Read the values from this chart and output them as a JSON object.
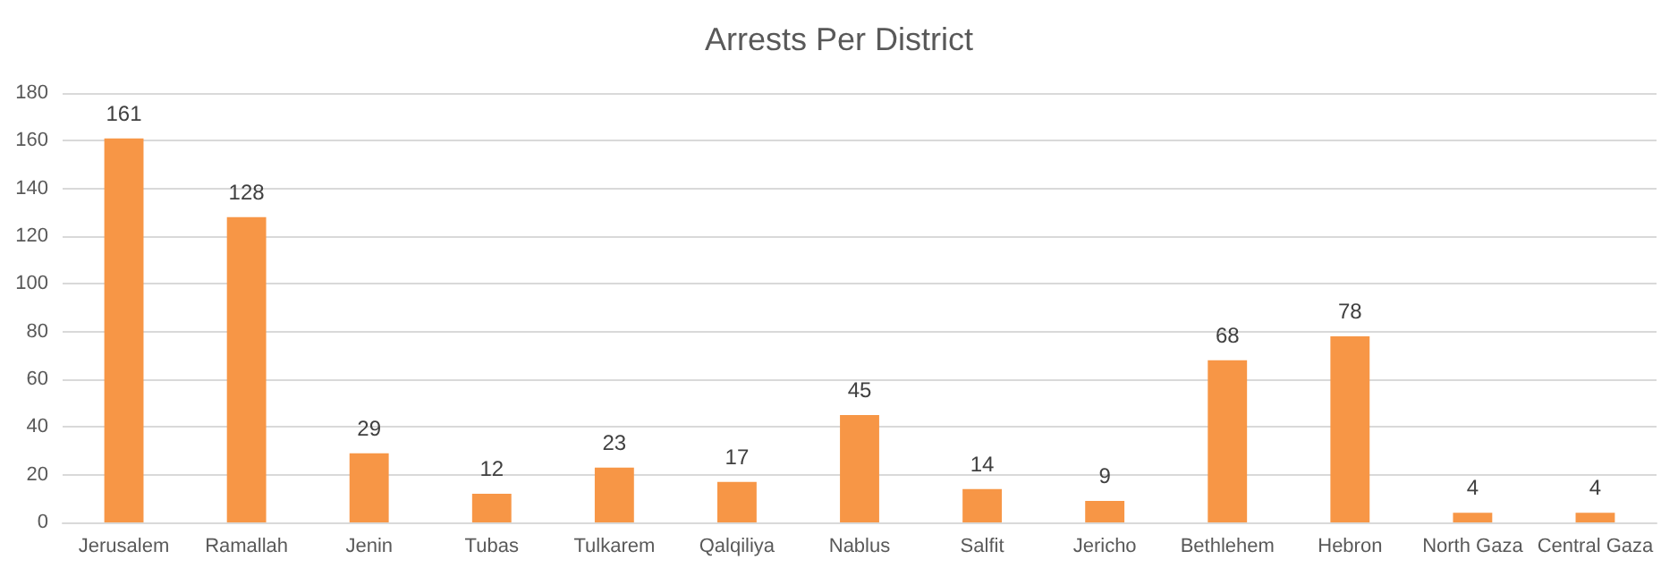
{
  "chart_data": {
    "type": "bar",
    "title": "Arrests Per District",
    "categories": [
      "Jerusalem",
      "Ramallah",
      "Jenin",
      "Tubas",
      "Tulkarem",
      "Qalqiliya",
      "Nablus",
      "Salfit",
      "Jericho",
      "Bethlehem",
      "Hebron",
      "North Gaza",
      "Central Gaza"
    ],
    "values": [
      161,
      128,
      29,
      12,
      23,
      17,
      45,
      14,
      9,
      68,
      78,
      4,
      4
    ],
    "color": "#f79646",
    "ylim": [
      0,
      180
    ],
    "yticks": [
      0,
      20,
      40,
      60,
      80,
      100,
      120,
      140,
      160,
      180
    ],
    "grid": "y",
    "data_labels": true
  }
}
